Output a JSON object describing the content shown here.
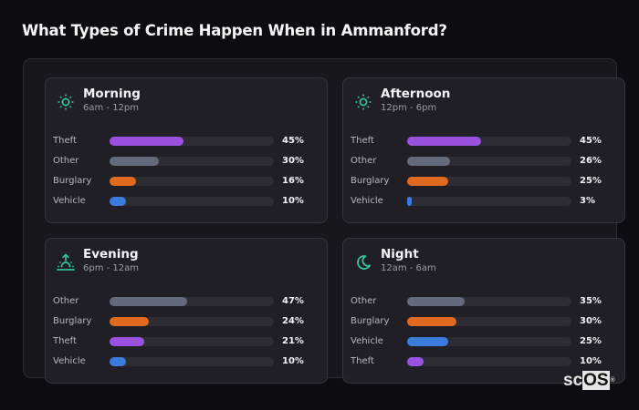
{
  "title": "What Types of Crime Happen When in Ammanford?",
  "colors": {
    "Theft": "#9b51e0",
    "Other": "#636a7c",
    "Burglary": "#e06a1e",
    "Vehicle": "#3a7bdc",
    "icon": "#2ec498"
  },
  "cards": [
    {
      "title": "Morning",
      "subtitle": "6am - 12pm",
      "icon": "sun-icon",
      "rows": [
        {
          "label": "Theft",
          "value": 45,
          "display": "45%"
        },
        {
          "label": "Other",
          "value": 30,
          "display": "30%"
        },
        {
          "label": "Burglary",
          "value": 16,
          "display": "16%"
        },
        {
          "label": "Vehicle",
          "value": 10,
          "display": "10%"
        }
      ]
    },
    {
      "title": "Afternoon",
      "subtitle": "12pm - 6pm",
      "icon": "sun-icon",
      "rows": [
        {
          "label": "Theft",
          "value": 45,
          "display": "45%"
        },
        {
          "label": "Other",
          "value": 26,
          "display": "26%"
        },
        {
          "label": "Burglary",
          "value": 25,
          "display": "25%"
        },
        {
          "label": "Vehicle",
          "value": 3,
          "display": "3%"
        }
      ]
    },
    {
      "title": "Evening",
      "subtitle": "6pm - 12am",
      "icon": "sunset-icon",
      "rows": [
        {
          "label": "Other",
          "value": 47,
          "display": "47%"
        },
        {
          "label": "Burglary",
          "value": 24,
          "display": "24%"
        },
        {
          "label": "Theft",
          "value": 21,
          "display": "21%"
        },
        {
          "label": "Vehicle",
          "value": 10,
          "display": "10%"
        }
      ]
    },
    {
      "title": "Night",
      "subtitle": "12am - 6am",
      "icon": "moon-icon",
      "rows": [
        {
          "label": "Other",
          "value": 35,
          "display": "35%"
        },
        {
          "label": "Burglary",
          "value": 30,
          "display": "30%"
        },
        {
          "label": "Vehicle",
          "value": 25,
          "display": "25%"
        },
        {
          "label": "Theft",
          "value": 10,
          "display": "10%"
        }
      ]
    }
  ],
  "watermark": {
    "sc": "sc",
    "os": "OS",
    "reg": "®"
  },
  "chart_data": [
    {
      "type": "bar",
      "orientation": "horizontal",
      "title": "Morning",
      "subtitle": "6am - 12pm",
      "categories": [
        "Theft",
        "Other",
        "Burglary",
        "Vehicle"
      ],
      "values": [
        45,
        30,
        16,
        10
      ],
      "unit": "%",
      "xlim": [
        0,
        100
      ]
    },
    {
      "type": "bar",
      "orientation": "horizontal",
      "title": "Afternoon",
      "subtitle": "12pm - 6pm",
      "categories": [
        "Theft",
        "Other",
        "Burglary",
        "Vehicle"
      ],
      "values": [
        45,
        26,
        25,
        3
      ],
      "unit": "%",
      "xlim": [
        0,
        100
      ]
    },
    {
      "type": "bar",
      "orientation": "horizontal",
      "title": "Evening",
      "subtitle": "6pm - 12am",
      "categories": [
        "Other",
        "Burglary",
        "Theft",
        "Vehicle"
      ],
      "values": [
        47,
        24,
        21,
        10
      ],
      "unit": "%",
      "xlim": [
        0,
        100
      ]
    },
    {
      "type": "bar",
      "orientation": "horizontal",
      "title": "Night",
      "subtitle": "12am - 6am",
      "categories": [
        "Other",
        "Burglary",
        "Vehicle",
        "Theft"
      ],
      "values": [
        35,
        30,
        25,
        10
      ],
      "unit": "%",
      "xlim": [
        0,
        100
      ]
    }
  ]
}
